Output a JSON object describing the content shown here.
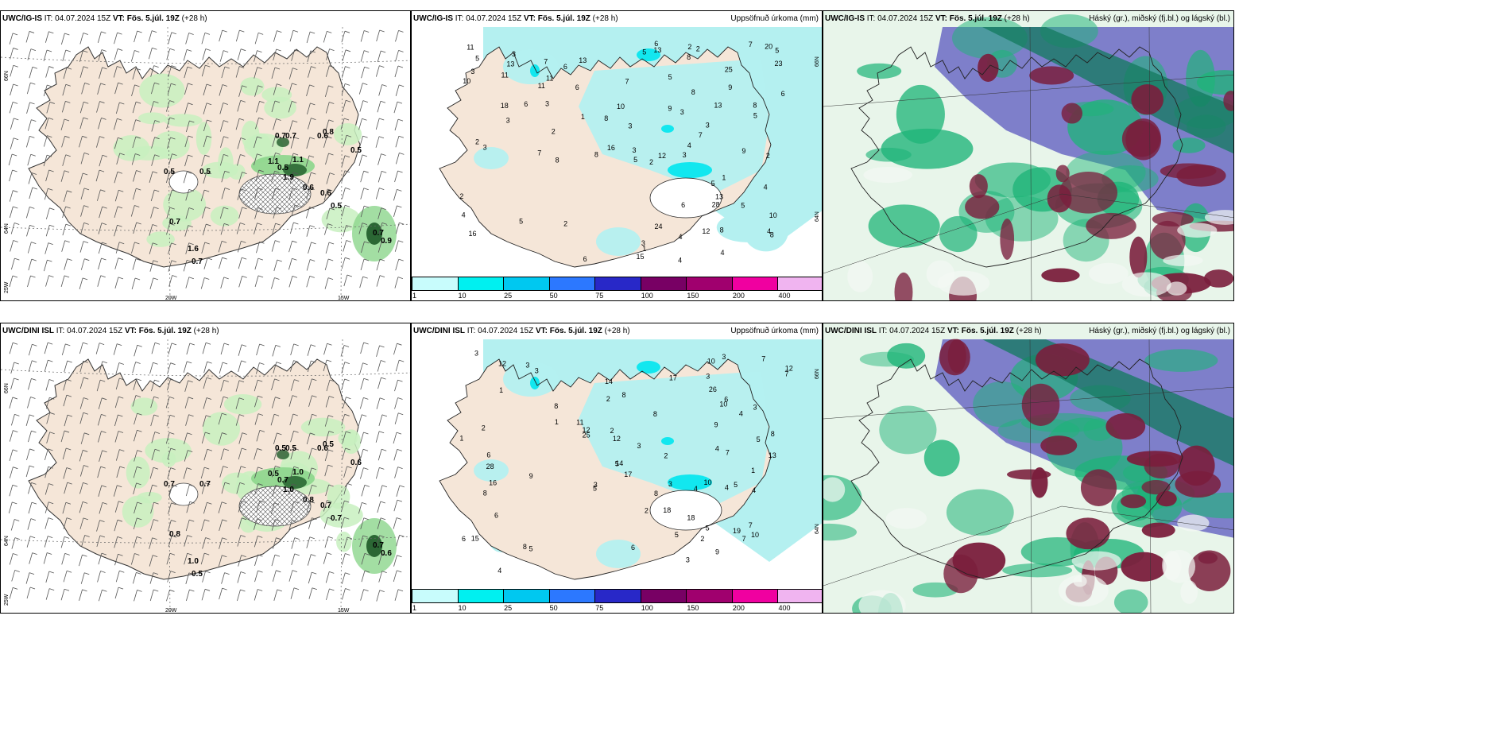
{
  "top": {
    "p1": {
      "model": "UWC/IG-IS",
      "it": "IT: 04.07.2024 15Z",
      "vt": "VT: Fös. 5.júl. 19Z",
      "lead": "(+28 h)",
      "labels": [
        "0.5",
        "0.5",
        "0.7",
        "0.7",
        "0.7",
        "1.1",
        "1.1",
        "0.5",
        "0.6",
        "0.6",
        "0.8",
        "0.5",
        "0.5",
        "0.6",
        "0.9",
        "0.7",
        "0.7",
        "1.6",
        "1.9"
      ]
    },
    "p2": {
      "model": "UWC/IG-IS",
      "it": "IT: 04.07.2024 15Z",
      "vt": "VT: Fös. 5.júl. 19Z",
      "lead": "(+28 h)",
      "right": "Uppsöfnuð úrkoma (mm)",
      "labels": [
        "3",
        "7",
        "2",
        "4",
        "20",
        "18",
        "3",
        "7",
        "6",
        "5",
        "13",
        "4",
        "13",
        "11",
        "8",
        "8",
        "3",
        "6",
        "10",
        "9",
        "10",
        "1",
        "10",
        "3",
        "16",
        "5",
        "7",
        "6",
        "16",
        "13",
        "12",
        "9",
        "9",
        "11",
        "8",
        "5",
        "15",
        "11",
        "5",
        "6",
        "8",
        "7",
        "3",
        "4",
        "2",
        "6",
        "3",
        "6",
        "13",
        "8",
        "5",
        "8",
        "5",
        "12",
        "7",
        "3",
        "4",
        "5",
        "24",
        "3",
        "11",
        "28",
        "25",
        "2",
        "2",
        "8",
        "4",
        "8",
        "1",
        "3",
        "5",
        "4",
        "2",
        "4",
        "2",
        "5",
        "13",
        "2",
        "3",
        "3",
        "23",
        "6",
        "1",
        "2"
      ]
    },
    "p3": {
      "model": "UWC/IG-IS",
      "it": "IT: 04.07.2024 15Z",
      "vt": "VT: Fös. 5.júl. 19Z",
      "lead": "(+28 h)",
      "right": "Háský (gr.), miðský (fj.bl.) og lágský (bl.)"
    }
  },
  "bottom": {
    "p1": {
      "model": "UWC/DINI ISL",
      "it": "IT: 04.07.2024 15Z",
      "vt": "VT: Fös. 5.júl. 19Z",
      "lead": "(+28 h)",
      "labels": [
        "0.7",
        "0.7",
        "0.8",
        "0.5",
        "0.5",
        "1.0",
        "0.5",
        "0.7",
        "0.8",
        "0.6",
        "0.5",
        "0.6",
        "0.7",
        "0.7",
        "0.6",
        "0.7",
        "0.5",
        "1.0",
        "1.0"
      ]
    },
    "p2": {
      "model": "UWC/DINI ISL",
      "it": "IT: 04.07.2024 15Z",
      "vt": "VT: Fös. 5.júl. 19Z",
      "lead": "(+28 h)",
      "right": "Uppsöfnuð úrkoma (mm)",
      "labels": [
        "3",
        "6",
        "4",
        "1",
        "8",
        "19",
        "15",
        "8",
        "7",
        "4",
        "12",
        "3",
        "10",
        "8",
        "5",
        "6",
        "10",
        "9",
        "8",
        "9",
        "7",
        "5",
        "6",
        "6",
        "3",
        "7",
        "8",
        "12",
        "14",
        "12",
        "7",
        "11",
        "5",
        "13",
        "10",
        "18",
        "5",
        "16",
        "8",
        "5",
        "18",
        "4",
        "2",
        "3",
        "6",
        "26",
        "3",
        "12",
        "10",
        "3",
        "8",
        "14",
        "17",
        "5",
        "4",
        "28",
        "25",
        "3",
        "3",
        "7",
        "2",
        "3",
        "9",
        "4",
        "2",
        "1",
        "2",
        "5",
        "4",
        "2",
        "1",
        "17",
        "2",
        "3",
        "1"
      ]
    },
    "p3": {
      "model": "UWC/DINI ISL",
      "it": "IT: 04.07.2024 15Z",
      "vt": "VT: Fös. 5.júl. 19Z",
      "lead": "(+28 h)",
      "right": "Háský (gr.), miðský (fj.bl.) og lágský (bl.)"
    }
  },
  "axes": {
    "lat66": "66N",
    "lat64": "64N",
    "lon20": "20W",
    "lon15": "15W",
    "lon25": "25W"
  },
  "colorbar": {
    "ticks": [
      "1",
      "10",
      "25",
      "50",
      "75",
      "100",
      "150",
      "200",
      "400"
    ],
    "colors": [
      "#c8fcfc",
      "#00f0f0",
      "#00c8f0",
      "#2c78ff",
      "#2828c8",
      "#780064",
      "#a0006e",
      "#f000a0",
      "#f0b4f0"
    ]
  },
  "colors": {
    "land": "#f5e6d8",
    "sea": "#ffffff",
    "precip_light": "#b4f0f0",
    "precip_cyan": "#00e6ee",
    "green_light": "#c8f0c0",
    "green_mid": "#8cd68c",
    "green_dark": "#1e5a28",
    "high": "#1eb478",
    "mid": "#7878c8",
    "low": "#7a1e3c"
  }
}
